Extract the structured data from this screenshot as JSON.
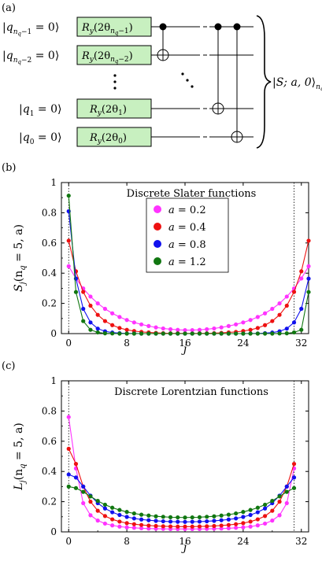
{
  "panels": {
    "a": "(a)",
    "b": "(b)",
    "c": "(c)"
  },
  "circuit": {
    "inputs": [
      {
        "sub": "n",
        "subsub": "q",
        "suffix": "−1",
        "val": "0"
      },
      {
        "sub": "n",
        "subsub": "q",
        "suffix": "−2",
        "val": "0"
      },
      {
        "sub": "1",
        "subsub": "",
        "suffix": "",
        "val": "0"
      },
      {
        "sub": "0",
        "subsub": "",
        "suffix": "",
        "val": "0"
      }
    ],
    "gates": [
      {
        "name": "R",
        "sub": "y",
        "arg": "2θ",
        "argsub": "n",
        "argsubsub": "q",
        "argsuffix": "−1"
      },
      {
        "name": "R",
        "sub": "y",
        "arg": "2θ",
        "argsub": "n",
        "argsubsub": "q",
        "argsuffix": "−2"
      },
      {
        "name": "R",
        "sub": "y",
        "arg": "2θ",
        "argsub": "1",
        "argsubsub": "",
        "argsuffix": ""
      },
      {
        "name": "R",
        "sub": "y",
        "arg": "2θ",
        "argsub": "0",
        "argsubsub": "",
        "argsuffix": ""
      }
    ],
    "output": {
      "state": "S; a, 0",
      "sub": "n",
      "subsub": "q"
    },
    "gate_color": "#c8f0c0"
  },
  "chart_data": [
    {
      "type": "line",
      "title": "Discrete Slater functions",
      "ylabel_main": "S",
      "ylabel_sub": "j",
      "ylabel_args": "(n",
      "ylabel_args_sub": "q",
      "ylabel_args_rest": " = 5, a)",
      "xlabel": "j",
      "xlim": [
        -1,
        33
      ],
      "ylim": [
        0,
        1
      ],
      "xticks": [
        0,
        8,
        16,
        24,
        32
      ],
      "yticks": [
        0,
        0.2,
        0.4,
        0.6,
        0.8,
        1
      ],
      "ytick_labels": [
        "0",
        "0.2",
        "0.4",
        "0.6",
        "0.8",
        "1"
      ],
      "vlines": [
        0,
        31
      ],
      "legend_position": "top-center",
      "series": [
        {
          "name": "a = 0.2",
          "color": "#ff33ff",
          "values": [
            0.446,
            0.365,
            0.299,
            0.245,
            0.2,
            0.164,
            0.134,
            0.11,
            0.09,
            0.074,
            0.061,
            0.05,
            0.041,
            0.034,
            0.029,
            0.025,
            0.023,
            0.023,
            0.025,
            0.029,
            0.034,
            0.041,
            0.05,
            0.061,
            0.074,
            0.09,
            0.11,
            0.134,
            0.164,
            0.2,
            0.245,
            0.299,
            0.365,
            0.446
          ]
        },
        {
          "name": "a = 0.4",
          "color": "#ee1111",
          "values": [
            0.615,
            0.412,
            0.276,
            0.185,
            0.124,
            0.083,
            0.056,
            0.037,
            0.025,
            0.017,
            0.011,
            0.008,
            0.005,
            0.003,
            0.002,
            0.002,
            0.001,
            0.001,
            0.002,
            0.002,
            0.003,
            0.005,
            0.008,
            0.011,
            0.017,
            0.025,
            0.037,
            0.056,
            0.083,
            0.124,
            0.185,
            0.276,
            0.412,
            0.615
          ]
        },
        {
          "name": "a = 0.8",
          "color": "#1111ee",
          "values": [
            0.81,
            0.364,
            0.164,
            0.074,
            0.033,
            0.015,
            0.007,
            0.003,
            0.001,
            0.001,
            0,
            0,
            0,
            0,
            0,
            0,
            0,
            0,
            0,
            0,
            0,
            0,
            0,
            0,
            0,
            0.001,
            0.001,
            0.003,
            0.007,
            0.015,
            0.033,
            0.074,
            0.164,
            0.364
          ]
        },
        {
          "name": "a = 1.2",
          "color": "#117711",
          "values": [
            0.913,
            0.275,
            0.083,
            0.025,
            0.008,
            0.002,
            0.001,
            0,
            0,
            0,
            0,
            0,
            0,
            0,
            0,
            0,
            0,
            0,
            0,
            0,
            0,
            0,
            0,
            0,
            0,
            0,
            0,
            0,
            0,
            0.001,
            0.002,
            0.008,
            0.025,
            0.275
          ]
        }
      ]
    },
    {
      "type": "line",
      "title": "Discrete Lorentzian functions",
      "ylabel_main": "L",
      "ylabel_sub": "j",
      "ylabel_args": "(n",
      "ylabel_args_sub": "q",
      "ylabel_args_rest": " = 5, a)",
      "xlabel": "j",
      "xlim": [
        -1,
        33
      ],
      "ylim": [
        0,
        1
      ],
      "xticks": [
        0,
        8,
        16,
        24,
        32
      ],
      "yticks": [
        0,
        0.2,
        0.4,
        0.6,
        0.8,
        1
      ],
      "ytick_labels": [
        "0",
        "0.2",
        "0.4",
        "0.6",
        "0.8",
        "1"
      ],
      "vlines": [
        0,
        31
      ],
      "legend_position": "none",
      "series": [
        {
          "name": "",
          "color": "#ff33ff",
          "values": [
            0.76,
            0.42,
            0.19,
            0.11,
            0.075,
            0.055,
            0.043,
            0.035,
            0.03,
            0.027,
            0.024,
            0.022,
            0.021,
            0.02,
            0.019,
            0.019,
            0.019,
            0.019,
            0.019,
            0.02,
            0.021,
            0.022,
            0.024,
            0.027,
            0.03,
            0.035,
            0.043,
            0.055,
            0.075,
            0.11,
            0.19,
            0.42
          ]
        },
        {
          "name": "",
          "color": "#ee1111",
          "values": [
            0.55,
            0.45,
            0.3,
            0.2,
            0.14,
            0.105,
            0.083,
            0.068,
            0.058,
            0.051,
            0.046,
            0.042,
            0.039,
            0.037,
            0.036,
            0.035,
            0.035,
            0.035,
            0.036,
            0.037,
            0.039,
            0.042,
            0.046,
            0.051,
            0.058,
            0.068,
            0.083,
            0.105,
            0.14,
            0.2,
            0.3,
            0.45
          ]
        },
        {
          "name": "",
          "color": "#1111ee",
          "values": [
            0.38,
            0.36,
            0.3,
            0.24,
            0.19,
            0.155,
            0.13,
            0.112,
            0.099,
            0.089,
            0.082,
            0.077,
            0.073,
            0.07,
            0.068,
            0.067,
            0.066,
            0.067,
            0.068,
            0.07,
            0.073,
            0.077,
            0.082,
            0.089,
            0.099,
            0.112,
            0.13,
            0.155,
            0.19,
            0.24,
            0.3,
            0.36
          ]
        },
        {
          "name": "",
          "color": "#117711",
          "values": [
            0.3,
            0.29,
            0.265,
            0.235,
            0.205,
            0.18,
            0.16,
            0.145,
            0.132,
            0.122,
            0.114,
            0.108,
            0.103,
            0.1,
            0.097,
            0.096,
            0.095,
            0.096,
            0.097,
            0.1,
            0.103,
            0.108,
            0.114,
            0.122,
            0.132,
            0.145,
            0.16,
            0.18,
            0.205,
            0.235,
            0.265,
            0.29
          ]
        }
      ]
    }
  ]
}
